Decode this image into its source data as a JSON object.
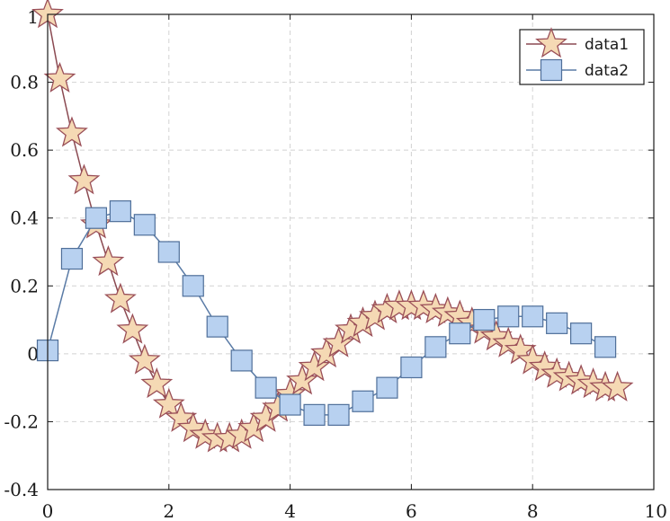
{
  "chart_data": {
    "type": "line",
    "title": "",
    "xlabel": "",
    "ylabel": "",
    "xlim": [
      0,
      10
    ],
    "ylim": [
      -0.4,
      1
    ],
    "xticks": [
      0,
      2,
      4,
      6,
      8,
      10
    ],
    "yticks": [
      -0.4,
      -0.2,
      0,
      0.2,
      0.4,
      0.6,
      0.8,
      1
    ],
    "xtick_labels": [
      "0",
      "2",
      "4",
      "6",
      "8",
      "10"
    ],
    "ytick_labels": [
      "-0.4",
      "-0.2",
      "0",
      "0.2",
      "0.4",
      "0.6",
      "0.8",
      "1"
    ],
    "grid": true,
    "legend_position": "top-right",
    "series": [
      {
        "name": "data1",
        "marker": "star",
        "line_color": "#8b4a52",
        "marker_fill": "#f5d9b4",
        "marker_edge": "#9a4f58",
        "x": [
          0,
          0.2,
          0.4,
          0.6,
          0.8,
          1.0,
          1.2,
          1.4,
          1.6,
          1.8,
          2.0,
          2.2,
          2.4,
          2.6,
          2.8,
          3.0,
          3.2,
          3.4,
          3.6,
          3.8,
          4.0,
          4.2,
          4.4,
          4.6,
          4.8,
          5.0,
          5.2,
          5.4,
          5.6,
          5.8,
          6.0,
          6.2,
          6.4,
          6.6,
          6.8,
          7.0,
          7.2,
          7.4,
          7.6,
          7.8,
          8.0,
          8.2,
          8.4,
          8.6,
          8.8,
          9.0,
          9.2,
          9.4
        ],
        "y": [
          1.0,
          0.81,
          0.65,
          0.51,
          0.38,
          0.27,
          0.16,
          0.07,
          -0.02,
          -0.09,
          -0.15,
          -0.19,
          -0.22,
          -0.24,
          -0.25,
          -0.25,
          -0.24,
          -0.22,
          -0.19,
          -0.16,
          -0.12,
          -0.08,
          -0.04,
          0.0,
          0.03,
          0.07,
          0.09,
          0.11,
          0.13,
          0.14,
          0.14,
          0.14,
          0.13,
          0.12,
          0.11,
          0.09,
          0.07,
          0.05,
          0.03,
          0.01,
          -0.02,
          -0.04,
          -0.06,
          -0.07,
          -0.08,
          -0.09,
          -0.1,
          -0.1
        ]
      },
      {
        "name": "data2",
        "marker": "square",
        "line_color": "#5a7ba6",
        "marker_fill": "#b8d1f0",
        "marker_edge": "#4f6f99",
        "x": [
          0,
          0.4,
          0.8,
          1.2,
          1.6,
          2.0,
          2.4,
          2.8,
          3.2,
          3.6,
          4.0,
          4.4,
          4.8,
          5.2,
          5.6,
          6.0,
          6.4,
          6.8,
          7.2,
          7.6,
          8.0,
          8.4,
          8.8,
          9.2
        ],
        "y": [
          0.01,
          0.28,
          0.4,
          0.42,
          0.38,
          0.3,
          0.2,
          0.08,
          -0.02,
          -0.1,
          -0.15,
          -0.18,
          -0.18,
          -0.14,
          -0.1,
          -0.04,
          0.02,
          0.06,
          0.1,
          0.11,
          0.11,
          0.09,
          0.06,
          0.02
        ]
      }
    ]
  }
}
